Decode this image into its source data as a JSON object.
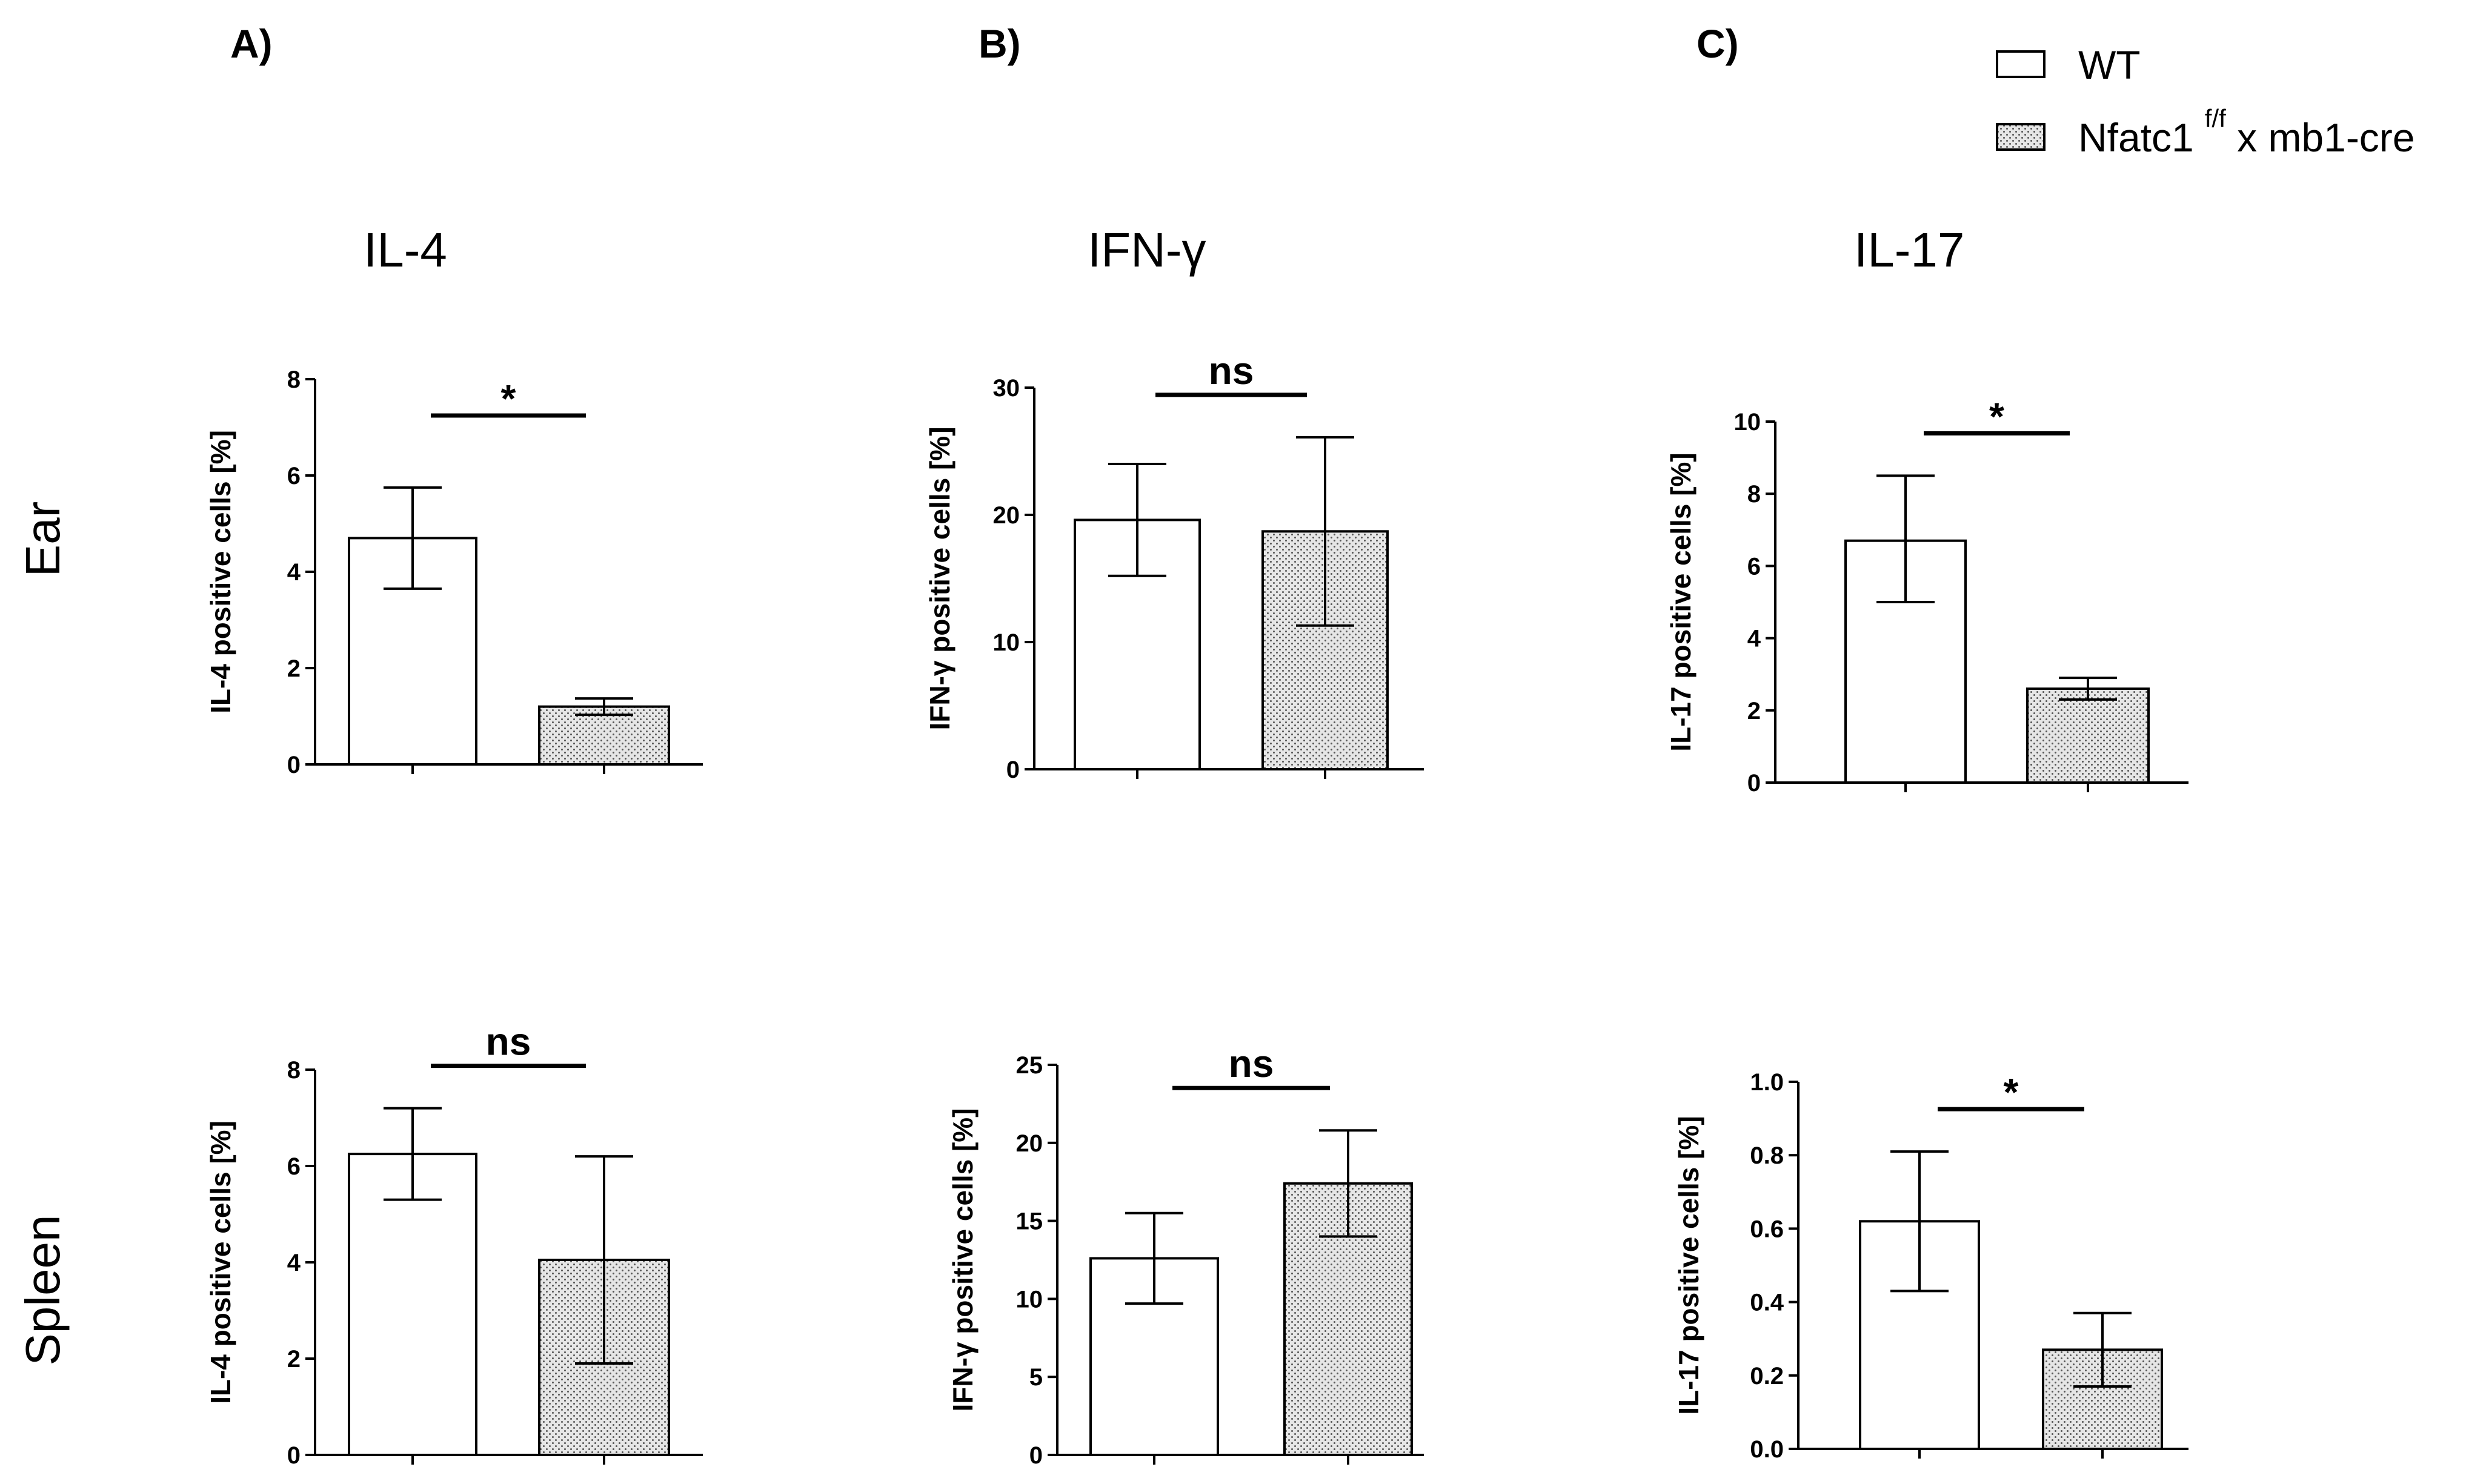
{
  "figure": {
    "panels": [
      "A)",
      "B)",
      "C)"
    ],
    "columns": [
      "IL-4",
      "IFN-γ",
      "IL-17"
    ],
    "rows": [
      "Ear",
      "Spleen"
    ]
  },
  "legend": {
    "wt": "WT",
    "ko_main": "Nfatc1",
    "ko_sup": "f/f",
    "ko_tail": " x mb1-cre"
  },
  "colors": {
    "axis": "#000000",
    "wt_fill": "#ffffff",
    "ko_fill": "#e6e6e6",
    "ko_dot": "#555555"
  },
  "chart_data": [
    {
      "type": "bar",
      "id": "ear-il4",
      "row": "Ear",
      "title": "IL-4",
      "ylabel": "IL-4 positive cells [%]",
      "categories": [
        "WT",
        "Nfatc1 f/f x mb1-cre"
      ],
      "values": [
        4.7,
        1.2
      ],
      "errors": [
        [
          3.65,
          5.75
        ],
        [
          1.03,
          1.37
        ]
      ],
      "ylim": [
        0,
        8
      ],
      "yticks": [
        0,
        2,
        4,
        6,
        8
      ],
      "yticklabels": [
        "0",
        "2",
        "4",
        "6",
        "8"
      ],
      "significance": "*"
    },
    {
      "type": "bar",
      "id": "ear-ifng",
      "row": "Ear",
      "title": "IFN-γ",
      "ylabel": "IFN-γ positive cells [%]",
      "categories": [
        "WT",
        "Nfatc1 f/f x mb1-cre"
      ],
      "values": [
        19.6,
        18.7
      ],
      "errors": [
        [
          15.2,
          24.0
        ],
        [
          11.3,
          26.1
        ]
      ],
      "ylim": [
        0,
        30
      ],
      "yticks": [
        0,
        10,
        20,
        30
      ],
      "yticklabels": [
        "0",
        "10",
        "20",
        "30"
      ],
      "significance": "ns"
    },
    {
      "type": "bar",
      "id": "ear-il17",
      "row": "Ear",
      "title": "IL-17",
      "ylabel": "IL-17 positive cells [%]",
      "categories": [
        "WT",
        "Nfatc1 f/f x mb1-cre"
      ],
      "values": [
        6.7,
        2.6
      ],
      "errors": [
        [
          5.0,
          8.5
        ],
        [
          2.3,
          2.9
        ]
      ],
      "ylim": [
        0,
        10
      ],
      "yticks": [
        0,
        2,
        4,
        6,
        8,
        10
      ],
      "yticklabels": [
        "0",
        "2",
        "4",
        "6",
        "8",
        "10"
      ],
      "significance": "*"
    },
    {
      "type": "bar",
      "id": "spleen-il4",
      "row": "Spleen",
      "title": "IL-4",
      "ylabel": "IL-4 positive cells [%]",
      "categories": [
        "WT",
        "Nfatc1 f/f x mb1-cre"
      ],
      "values": [
        6.25,
        4.05
      ],
      "errors": [
        [
          5.3,
          7.2
        ],
        [
          1.9,
          6.2
        ]
      ],
      "ylim": [
        0,
        8
      ],
      "yticks": [
        0,
        2,
        4,
        6,
        8
      ],
      "yticklabels": [
        "0",
        "2",
        "4",
        "6",
        "8"
      ],
      "significance": "ns"
    },
    {
      "type": "bar",
      "id": "spleen-ifng",
      "row": "Spleen",
      "title": "IFN-γ",
      "ylabel": "IFN-γ positive cells [%]",
      "categories": [
        "WT",
        "Nfatc1 f/f x mb1-cre"
      ],
      "values": [
        12.6,
        17.4
      ],
      "errors": [
        [
          9.7,
          15.5
        ],
        [
          14.0,
          20.8
        ]
      ],
      "ylim": [
        0,
        25
      ],
      "yticks": [
        0,
        5,
        10,
        15,
        20,
        25
      ],
      "yticklabels": [
        "0",
        "5",
        "10",
        "15",
        "20",
        "25"
      ],
      "significance": "ns"
    },
    {
      "type": "bar",
      "id": "spleen-il17",
      "row": "Spleen",
      "title": "IL-17",
      "ylabel": "IL-17 positive cells [%]",
      "categories": [
        "WT",
        "Nfatc1 f/f x mb1-cre"
      ],
      "values": [
        0.62,
        0.27
      ],
      "errors": [
        [
          0.43,
          0.81
        ],
        [
          0.17,
          0.37
        ]
      ],
      "ylim": [
        0,
        1
      ],
      "yticks": [
        0,
        0.2,
        0.4,
        0.6,
        0.8,
        1.0
      ],
      "yticklabels": [
        "0.0",
        "0.2",
        "0.4",
        "0.6",
        "0.8",
        "1.0"
      ],
      "significance": "*"
    }
  ]
}
